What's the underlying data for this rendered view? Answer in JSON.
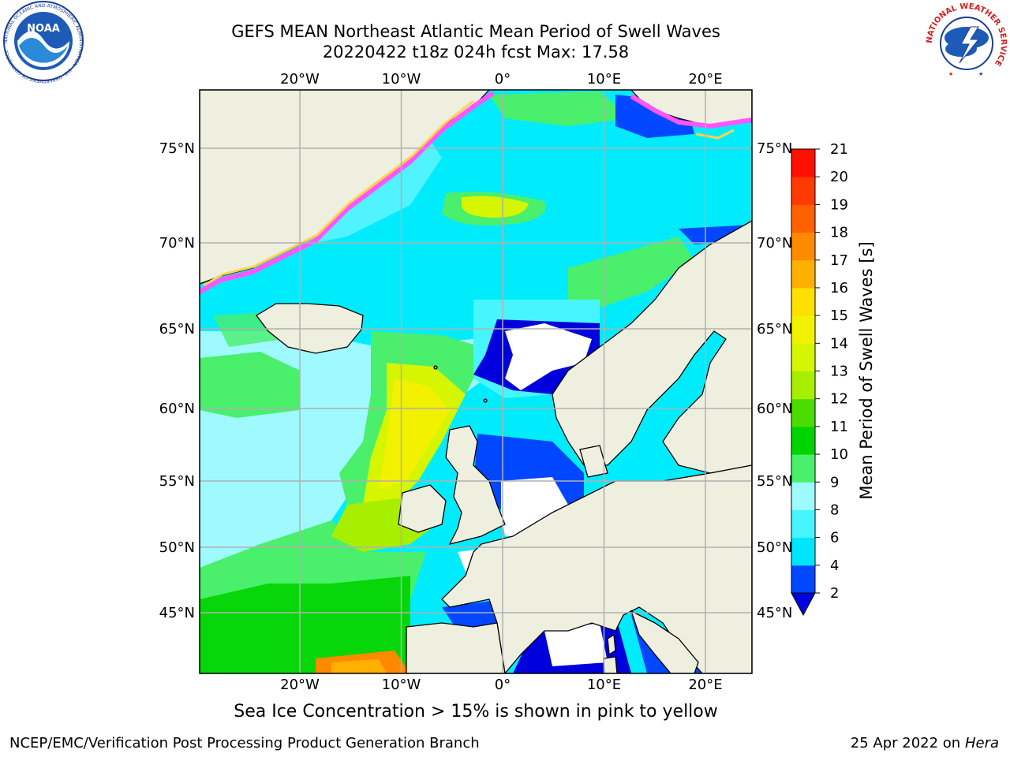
{
  "title_line1": "GEFS MEAN Northeast Atlantic Mean Period of Swell Waves",
  "title_line2": "20220422 t18z 024h fcst   Max: 17.58",
  "map": {
    "lon_ticks": [
      {
        "lon": -20,
        "label": "20°W"
      },
      {
        "lon": -10,
        "label": "10°W"
      },
      {
        "lon": 0,
        "label": "0°"
      },
      {
        "lon": 10,
        "label": "10°E"
      },
      {
        "lon": 20,
        "label": "20°E"
      }
    ],
    "lat_ticks": [
      {
        "lat": 75,
        "label": "75°N"
      },
      {
        "lat": 70,
        "label": "70°N"
      },
      {
        "lat": 65,
        "label": "65°N"
      },
      {
        "lat": 60,
        "label": "60°N"
      },
      {
        "lat": 55,
        "label": "55°N"
      },
      {
        "lat": 50,
        "label": "50°N"
      },
      {
        "lat": 45,
        "label": "45°N"
      }
    ]
  },
  "colorbar": {
    "label": "Mean Period of Swell Waves [s]",
    "ticks": [
      "2",
      "4",
      "6",
      "8",
      "9",
      "10",
      "11",
      "12",
      "13",
      "14",
      "15",
      "16",
      "17",
      "18",
      "19",
      "20",
      "21"
    ],
    "colors": [
      "#0047ff",
      "#00e5ff",
      "#47f5ff",
      "#9ffaff",
      "#4aef6b",
      "#00d400",
      "#4ddc00",
      "#a8ee00",
      "#d5f500",
      "#f2f200",
      "#ffe000",
      "#ffb000",
      "#ff8a00",
      "#ff6000",
      "#ff3a00",
      "#ff1000"
    ],
    "extend_color": "#0000dd"
  },
  "colors": {
    "land": "#efefdf",
    "ocean_base": "#00ecfd",
    "no_data": "#ffffff",
    "ice_edge": "#ff55ff",
    "ice_inner": "#ffd24a",
    "grid": "#b0b0b0",
    "coast": "#000000"
  },
  "footer_note": "Sea Ice Concentration > 15% is shown in pink to yellow",
  "credit_left": "NCEP/EMC/Verification Post Processing Product Generation Branch",
  "credit_date": "25 Apr 2022 on",
  "credit_machine": "Hera",
  "logos": {
    "noaa_text": "NOAA",
    "noaa_ring_text": "NATIONAL OCEANIC AND ATMOSPHERIC ADMINISTRATION · U.S. DEPARTMENT OF COMMERCE",
    "nws_ring_text": "NATIONAL WEATHER SERVICE"
  }
}
